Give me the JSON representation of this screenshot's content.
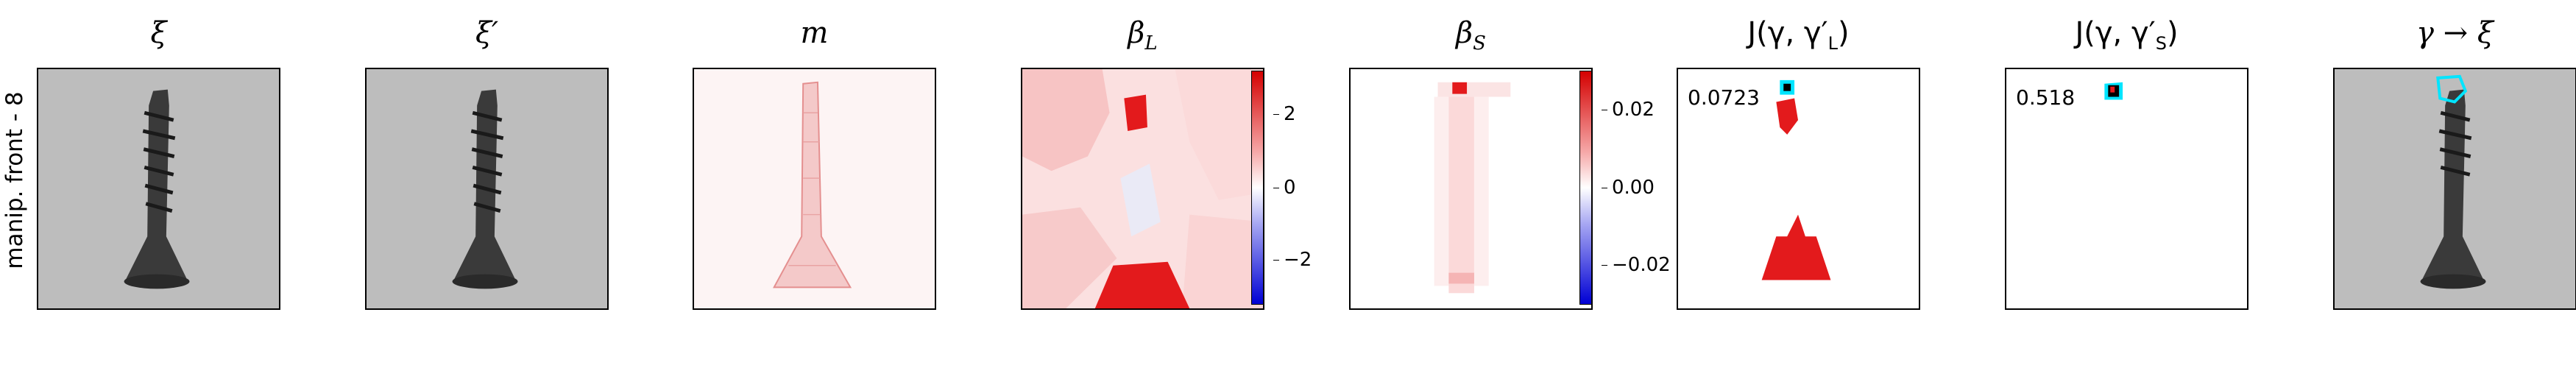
{
  "row_label": "manip. front - 8",
  "panels": [
    {
      "title": "ξ"
    },
    {
      "title": "ξ′"
    },
    {
      "title": "m"
    },
    {
      "title": "β_L",
      "colorbar_ticks": [
        "2",
        "0",
        "−2"
      ]
    },
    {
      "title": "β_S",
      "colorbar_ticks": [
        "0.02",
        "0.00",
        "−0.02"
      ]
    },
    {
      "title": "J(γ, γ′_L)",
      "score": "0.0723"
    },
    {
      "title": "J(γ, γ′_S)",
      "score": "0.518"
    },
    {
      "title": "γ → ξ"
    }
  ],
  "colors": {
    "diverging_pos": "#e31a1c",
    "diverging_neg": "#1f1fd6",
    "outline": "#00e5ff",
    "background_gray": "#bdbdbd"
  }
}
